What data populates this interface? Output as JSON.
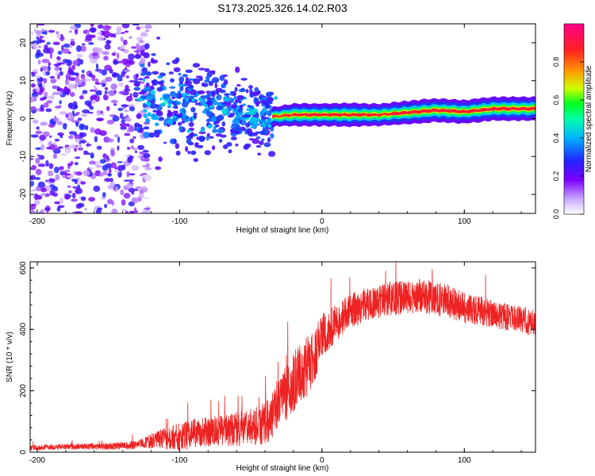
{
  "title": "S173.2025.326.14.02.R03",
  "colors": {
    "snr_line": "#ee2222",
    "frame": "#000000",
    "colormap": [
      "#ffffff",
      "#7b00ff",
      "#2222ff",
      "#00e0ff",
      "#00ff44",
      "#ccff00",
      "#ff9900",
      "#ff2222",
      "#ff0088"
    ]
  },
  "chart_data": [
    {
      "type": "heatmap",
      "name": "spectrogram",
      "title": "S173.2025.326.14.02.R03",
      "xlabel": "Height of straight line (km)",
      "ylabel": "Frequency (Hz)",
      "xlim": [
        -205,
        150
      ],
      "ylim": [
        -25,
        25
      ],
      "xticks": [
        -200,
        -100,
        0,
        100
      ],
      "xtick_labels": [
        "-200",
        "-100",
        "0",
        "100"
      ],
      "yticks": [
        -20,
        -10,
        0,
        10,
        20
      ],
      "ytick_labels": [
        "-20",
        "-10",
        "0",
        "10",
        "20"
      ],
      "colorbar": {
        "label": "Normalized spectral amplitude",
        "range": [
          0,
          1
        ],
        "ticks": [
          0.0,
          0.2,
          0.4,
          0.6,
          0.8
        ],
        "tick_labels": [
          "0.0",
          "0.2",
          "0.4",
          "0.6",
          "0.8"
        ]
      },
      "noise_region": {
        "x": [
          -205,
          -130
        ],
        "y": [
          -25,
          25
        ],
        "amplitude": [
          0.05,
          0.3
        ]
      },
      "transition_region": {
        "x": [
          -130,
          -35
        ],
        "center_hz": [
          5,
          0
        ],
        "spread_hz": [
          10,
          5
        ],
        "amplitude": [
          0.2,
          0.45
        ]
      },
      "ridge": {
        "x": [
          -35,
          -20,
          0,
          20,
          40,
          60,
          80,
          100,
          120,
          150
        ],
        "freq_hz": [
          0.5,
          1.0,
          1.0,
          1.0,
          1.0,
          1.6,
          2.2,
          1.8,
          2.6,
          2.6
        ],
        "amplitude": [
          0.4,
          0.85,
          0.8,
          0.9,
          0.75,
          0.9,
          0.95,
          0.9,
          0.95,
          0.95
        ]
      }
    },
    {
      "type": "line",
      "name": "snr",
      "xlabel": "Height of straight line (km)",
      "ylabel": "SNR (10 * v/v)",
      "xlim": [
        -205,
        150
      ],
      "ylim": [
        0,
        620
      ],
      "xticks": [
        -200,
        -100,
        0,
        100
      ],
      "xtick_labels": [
        "-200",
        "-100",
        "0",
        "100"
      ],
      "yticks": [
        0,
        200,
        400,
        600
      ],
      "ytick_labels": [
        "0",
        "200",
        "400",
        "600"
      ],
      "series": [
        {
          "name": "SNR",
          "x": [
            -205,
            -180,
            -160,
            -140,
            -130,
            -120,
            -110,
            -100,
            -90,
            -80,
            -70,
            -60,
            -50,
            -40,
            -35,
            -30,
            -25,
            -20,
            -15,
            -10,
            -5,
            0,
            5,
            10,
            15,
            20,
            30,
            40,
            50,
            60,
            70,
            80,
            90,
            100,
            110,
            120,
            130,
            140,
            150
          ],
          "mean": [
            15,
            18,
            18,
            20,
            25,
            35,
            45,
            50,
            60,
            65,
            70,
            75,
            80,
            95,
            120,
            170,
            190,
            230,
            260,
            280,
            320,
            380,
            400,
            420,
            440,
            460,
            480,
            490,
            500,
            505,
            510,
            500,
            490,
            470,
            460,
            450,
            440,
            430,
            420
          ],
          "noise": [
            8,
            10,
            10,
            12,
            15,
            25,
            35,
            45,
            50,
            50,
            50,
            55,
            60,
            70,
            80,
            80,
            90,
            100,
            100,
            100,
            90,
            70,
            65,
            60,
            60,
            60,
            55,
            55,
            55,
            55,
            55,
            55,
            55,
            50,
            50,
            45,
            45,
            45,
            45
          ]
        }
      ]
    }
  ]
}
